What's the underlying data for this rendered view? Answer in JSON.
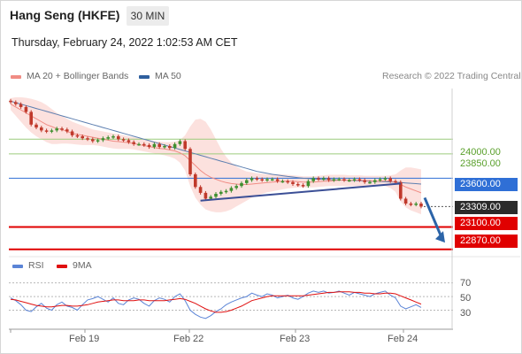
{
  "header": {
    "title": "Hang Seng (HKFE)",
    "timeframe": "30 MIN",
    "timestamp": "Thursday, February 24, 2022 1:02:53 AM CET"
  },
  "legend": {
    "items": [
      {
        "label": "MA 20 + Bollinger Bands",
        "color": "#f08c84"
      },
      {
        "label": "MA 50",
        "color": "#2e5f9e"
      }
    ],
    "credit": "Research © 2022 Trading Central"
  },
  "rsi_legend": {
    "items": [
      {
        "label": "RSI",
        "color": "#5b84d6"
      },
      {
        "label": "9MA",
        "color": "#e01010"
      }
    ]
  },
  "levels": {
    "r2": {
      "label": "24000.00",
      "color": "#5aa02c"
    },
    "r1": {
      "label": "23850.00",
      "color": "#5aa02c"
    },
    "pivot": {
      "label": "23600.00",
      "color": "#2f6fd6"
    },
    "last": {
      "label": "23309.00",
      "color": "#2b2b2b"
    },
    "s1": {
      "label": "23100.00",
      "color": "#e00000"
    },
    "s2": {
      "label": "22870.00",
      "color": "#e00000"
    }
  },
  "x_ticks": [
    "Feb 19",
    "Feb 22",
    "Feb 23",
    "Feb 24"
  ],
  "rsi_ticks": [
    "70",
    "50",
    "30"
  ],
  "chart_data": {
    "type": "candlestick",
    "ylim": [
      22850,
      24520
    ],
    "rsi_ylim": [
      10,
      85
    ],
    "price": [
      24380,
      24360,
      24330,
      24280,
      24150,
      24120,
      24090,
      24080,
      24090,
      24110,
      24100,
      24080,
      24040,
      24030,
      24010,
      24000,
      23980,
      23990,
      24010,
      24020,
      24030,
      24000,
      23990,
      23970,
      23950,
      23950,
      23940,
      23920,
      23950,
      23920,
      23930,
      23910,
      23950,
      23980,
      23900,
      23640,
      23510,
      23450,
      23390,
      23410,
      23440,
      23460,
      23470,
      23500,
      23520,
      23550,
      23580,
      23600,
      23590,
      23580,
      23590,
      23590,
      23570,
      23570,
      23560,
      23540,
      23530,
      23520,
      23570,
      23600,
      23590,
      23600,
      23580,
      23590,
      23590,
      23580,
      23580,
      23590,
      23580,
      23560,
      23560,
      23580,
      23590,
      23600,
      23570,
      23560,
      23390,
      23340,
      23330,
      23340,
      23309
    ],
    "ma20": [
      24360,
      24330,
      24300,
      24270,
      24240,
      24210,
      24180,
      24150,
      24130,
      24110,
      24100,
      24080,
      24060,
      24050,
      24040,
      24030,
      24020,
      24010,
      24000,
      23990,
      23980,
      23975,
      23970,
      23965,
      23955,
      23945,
      23935,
      23925,
      23915,
      23905,
      23900,
      23890,
      23880,
      23860,
      23830,
      23780,
      23730,
      23680,
      23640,
      23610,
      23590,
      23570,
      23555,
      23545,
      23540,
      23535,
      23535,
      23540,
      23545,
      23550,
      23555,
      23560,
      23565,
      23570,
      23570,
      23570,
      23565,
      23560,
      23560,
      23560,
      23565,
      23570,
      23570,
      23575,
      23580,
      23580,
      23580,
      23580,
      23580,
      23575,
      23575,
      23570,
      23570,
      23575,
      23570,
      23560,
      23535,
      23510,
      23490,
      23470,
      23450
    ],
    "bb_upper": [
      24420,
      24430,
      24430,
      24425,
      24415,
      24400,
      24380,
      24350,
      24310,
      24270,
      24240,
      24210,
      24180,
      24160,
      24140,
      24120,
      24100,
      24090,
      24080,
      24070,
      24060,
      24050,
      24040,
      24030,
      24020,
      24010,
      24000,
      23990,
      23980,
      23975,
      23970,
      23970,
      23975,
      23990,
      24040,
      24130,
      24200,
      24210,
      24180,
      24100,
      24000,
      23900,
      23820,
      23760,
      23720,
      23690,
      23670,
      23660,
      23650,
      23645,
      23640,
      23640,
      23640,
      23640,
      23635,
      23630,
      23625,
      23620,
      23620,
      23620,
      23625,
      23630,
      23635,
      23635,
      23635,
      23635,
      23630,
      23630,
      23630,
      23625,
      23625,
      23625,
      23625,
      23625,
      23630,
      23640,
      23680,
      23710,
      23710,
      23700,
      23690
    ],
    "bb_lower": [
      24300,
      24240,
      24180,
      24120,
      24070,
      24030,
      24000,
      23970,
      23950,
      23950,
      23955,
      23955,
      23950,
      23945,
      23940,
      23940,
      23940,
      23935,
      23925,
      23915,
      23905,
      23900,
      23900,
      23900,
      23895,
      23885,
      23875,
      23865,
      23855,
      23845,
      23835,
      23820,
      23800,
      23760,
      23680,
      23520,
      23400,
      23330,
      23280,
      23260,
      23250,
      23250,
      23260,
      23280,
      23310,
      23340,
      23370,
      23400,
      23420,
      23440,
      23455,
      23465,
      23475,
      23485,
      23495,
      23500,
      23505,
      23505,
      23505,
      23505,
      23510,
      23515,
      23520,
      23520,
      23520,
      23520,
      23520,
      23520,
      23520,
      23520,
      23520,
      23520,
      23520,
      23520,
      23500,
      23460,
      23360,
      23300,
      23270,
      23250,
      23230
    ],
    "ma50": [
      24390,
      24375,
      24360,
      24345,
      24330,
      24315,
      24300,
      24285,
      24270,
      24255,
      24240,
      24225,
      24210,
      24195,
      24180,
      24165,
      24150,
      24135,
      24120,
      24105,
      24090,
      24075,
      24060,
      24045,
      24030,
      24015,
      24000,
      23985,
      23970,
      23955,
      23940,
      23925,
      23910,
      23895,
      23880,
      23865,
      23850,
      23835,
      23820,
      23805,
      23790,
      23775,
      23760,
      23745,
      23730,
      23715,
      23700,
      23685,
      23670,
      23660,
      23650,
      23640,
      23632,
      23625,
      23618,
      23612,
      23606,
      23600,
      23596,
      23592,
      23590,
      23588,
      23586,
      23584,
      23582,
      23580,
      23578,
      23576,
      23574,
      23572,
      23570,
      23568,
      23566,
      23564,
      23562,
      23560,
      23556,
      23552,
      23548,
      23544,
      23540
    ],
    "trendline": {
      "from": [
        23370,
        23545
      ],
      "to": [
        23545,
        23545
      ],
      "from_index": 37,
      "to_index": 76
    },
    "projection": {
      "from_price": 23400,
      "to_price": 22940
    },
    "rsi": [
      48,
      44,
      38,
      30,
      28,
      35,
      40,
      33,
      30,
      38,
      42,
      36,
      34,
      30,
      38,
      45,
      47,
      50,
      46,
      42,
      48,
      40,
      38,
      45,
      48,
      46,
      40,
      36,
      44,
      48,
      46,
      42,
      50,
      54,
      44,
      30,
      24,
      20,
      18,
      22,
      28,
      32,
      38,
      42,
      45,
      48,
      50,
      55,
      52,
      50,
      54,
      52,
      48,
      50,
      52,
      48,
      46,
      50,
      55,
      58,
      56,
      58,
      55,
      56,
      58,
      55,
      52,
      56,
      54,
      52,
      50,
      54,
      56,
      58,
      52,
      48,
      36,
      32,
      35,
      38,
      34
    ],
    "rsi_ma": [
      46,
      45,
      43,
      41,
      39,
      37,
      36,
      35,
      35,
      36,
      37,
      37,
      36,
      36,
      37,
      38,
      40,
      42,
      43,
      44,
      45,
      45,
      44,
      44,
      44,
      45,
      45,
      44,
      44,
      44,
      44,
      45,
      46,
      47,
      46,
      43,
      40,
      36,
      32,
      29,
      27,
      27,
      28,
      30,
      33,
      36,
      40,
      44,
      46,
      48,
      50,
      51,
      51,
      51,
      51,
      51,
      51,
      51,
      52,
      53,
      54,
      55,
      56,
      56,
      57,
      57,
      57,
      56,
      56,
      55,
      55,
      54,
      54,
      55,
      55,
      54,
      51,
      48,
      45,
      42,
      39
    ]
  }
}
